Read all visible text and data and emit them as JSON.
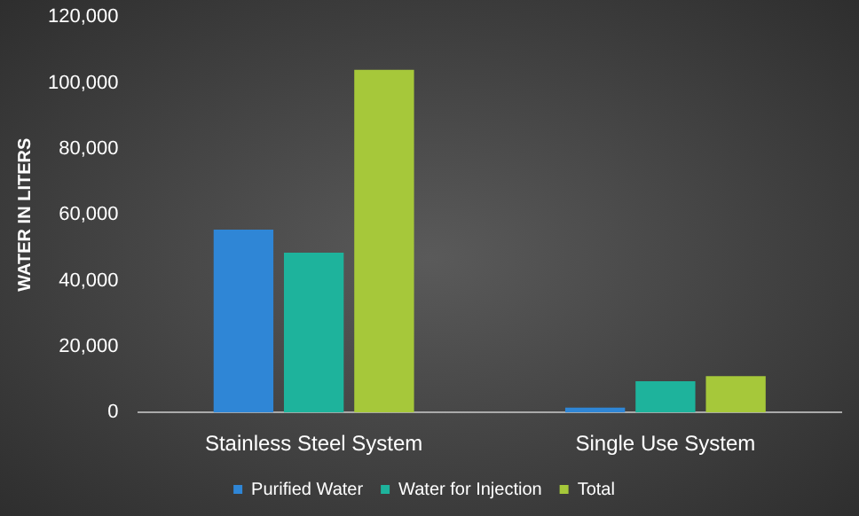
{
  "chart_data": {
    "type": "bar",
    "ylabel": "WATER IN LITERS",
    "categories": [
      "Stainless Steel System",
      "Single Use System"
    ],
    "series": [
      {
        "name": "Purified Water",
        "color": "#2f86d6",
        "values": [
          55500,
          1500
        ]
      },
      {
        "name": "Water for Injection",
        "color": "#1eb39c",
        "values": [
          48500,
          9500
        ]
      },
      {
        "name": "Total",
        "color": "#a6c83a",
        "values": [
          104000,
          11000
        ]
      }
    ],
    "ylim": [
      0,
      120000
    ],
    "yticks": [
      {
        "value": 0,
        "label": "0"
      },
      {
        "value": 20000,
        "label": "20,000"
      },
      {
        "value": 40000,
        "label": "40,000"
      },
      {
        "value": 60000,
        "label": "60,000"
      },
      {
        "value": 80000,
        "label": "80,000"
      },
      {
        "value": 100000,
        "label": "100,000"
      },
      {
        "value": 120000,
        "label": "120,000"
      }
    ],
    "grid": false,
    "legend": "bottom"
  }
}
